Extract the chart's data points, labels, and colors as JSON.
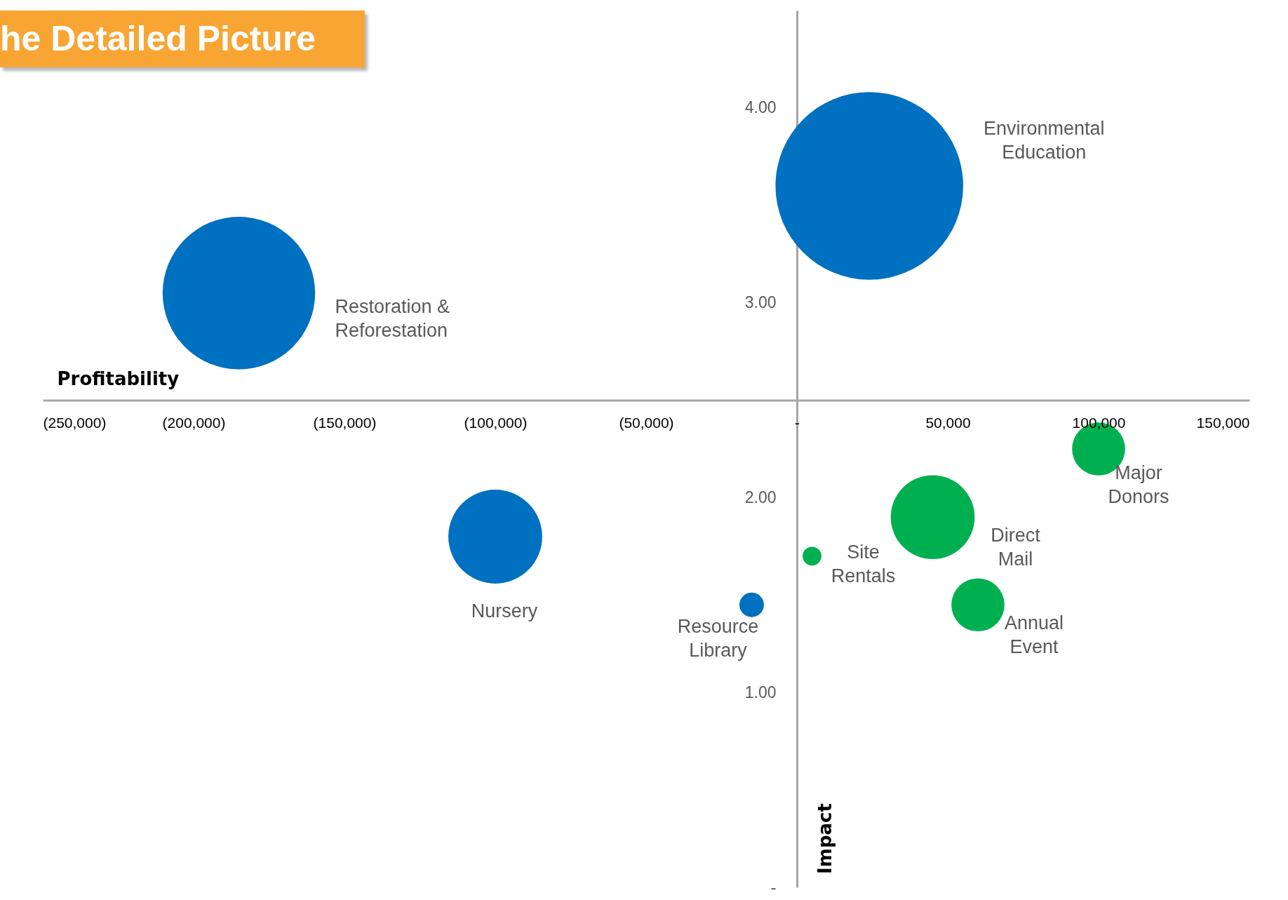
{
  "chart_data": {
    "type": "bubble",
    "title": "he Detailed Picture",
    "xlabel": "Profitability",
    "ylabel": "Impact",
    "xlim": [
      -250000,
      150000
    ],
    "ylim": [
      0,
      4.5
    ],
    "xticks": [
      {
        "value": -250000,
        "label": "(250,000)"
      },
      {
        "value": -200000,
        "label": "(200,000)"
      },
      {
        "value": -150000,
        "label": "(150,000)"
      },
      {
        "value": -100000,
        "label": "(100,000)"
      },
      {
        "value": -50000,
        "label": "(50,000)"
      },
      {
        "value": 0,
        "label": "-"
      },
      {
        "value": 50000,
        "label": "50,000"
      },
      {
        "value": 100000,
        "label": "100,000"
      },
      {
        "value": 150000,
        "label": "150,000"
      }
    ],
    "yticks": [
      {
        "value": 0,
        "label": "-"
      },
      {
        "value": 1,
        "label": "1.00"
      },
      {
        "value": 2,
        "label": "2.00"
      },
      {
        "value": 2.5,
        "label": null
      },
      {
        "value": 3,
        "label": "3.00"
      },
      {
        "value": 4,
        "label": "4.00"
      }
    ],
    "series": [
      {
        "color": "#0070c0",
        "x": [
          24000,
          -185000,
          -100000,
          -15000
        ],
        "values": [
          3.6,
          3.05,
          1.8,
          1.45
        ],
        "sizes": [
          1,
          0.66,
          0.25,
          0.017
        ]
      },
      {
        "color": "#00b050",
        "x": [
          5000,
          45000,
          60000,
          100000
        ],
        "values": [
          1.7,
          1.9,
          1.45,
          2.25
        ],
        "sizes": [
          0.01,
          0.2,
          0.08,
          0.08
        ]
      }
    ],
    "annotations": [
      "Environmental\nEducation",
      "Restoration &\nReforestation",
      "Nursery",
      "Resource\nLibrary",
      "Site\nRentals",
      "Direct\nMail",
      "Annual\nEvent",
      "Major\nDonors"
    ],
    "grid": false
  }
}
